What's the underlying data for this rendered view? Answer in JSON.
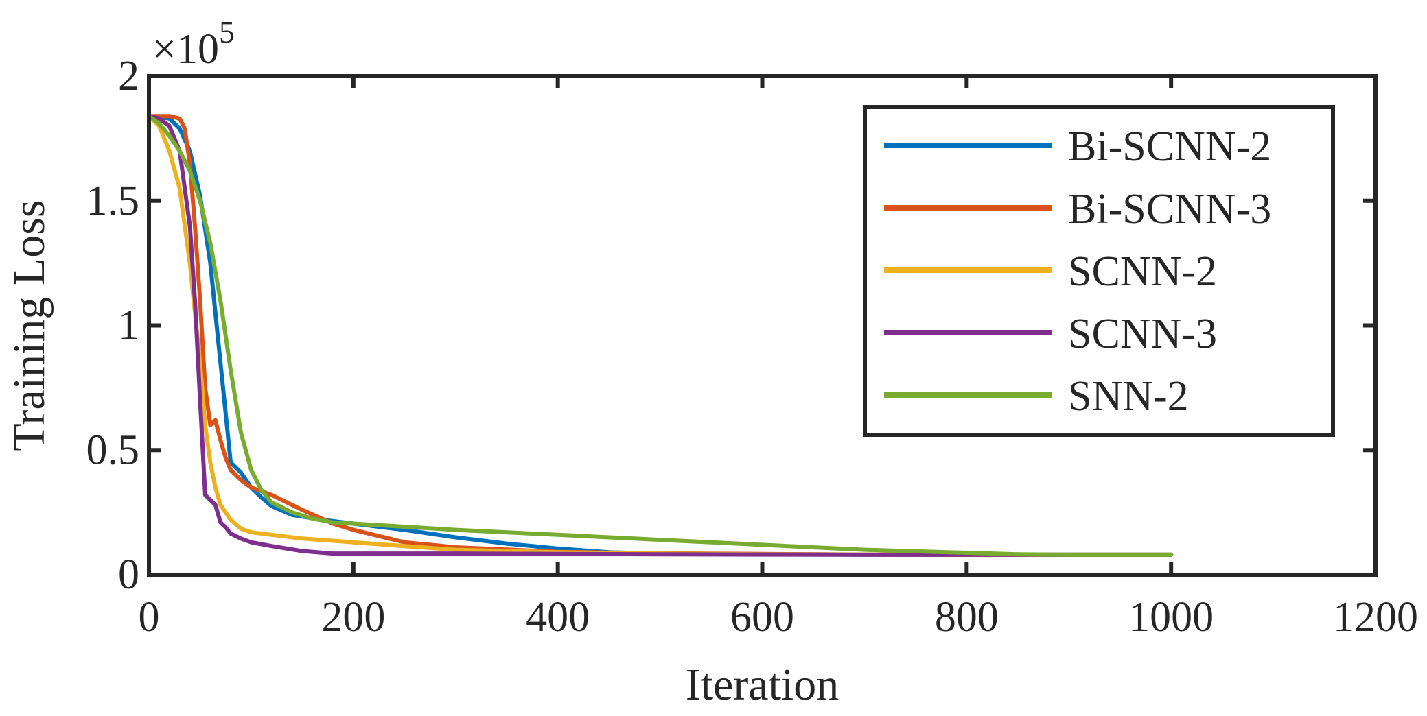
{
  "chart_data": {
    "type": "line",
    "xlabel": "Iteration",
    "ylabel": "Training Loss",
    "y_exponent_base": "×10",
    "y_exponent_power": "5",
    "xlim": [
      0,
      1200
    ],
    "ylim": [
      0,
      2
    ],
    "xticks": [
      0,
      200,
      400,
      600,
      800,
      1000,
      1200
    ],
    "xtick_labels": [
      "0",
      "200",
      "400",
      "600",
      "800",
      "1000",
      "1200"
    ],
    "yticks": [
      0,
      0.5,
      1,
      1.5,
      2
    ],
    "ytick_labels": [
      "0",
      "0.5",
      "1",
      "1.5",
      "2"
    ],
    "grid": false,
    "legend_position": "top-right",
    "series": [
      {
        "name": "Bi-SCNN-2",
        "color": "#0072BD",
        "x": [
          0,
          20,
          30,
          40,
          50,
          60,
          70,
          80,
          90,
          100,
          110,
          120,
          140,
          170,
          200,
          250,
          300,
          350,
          400,
          450,
          500,
          600,
          700,
          800,
          900,
          1000
        ],
        "y": [
          1.84,
          1.83,
          1.79,
          1.7,
          1.52,
          1.25,
          0.85,
          0.45,
          0.41,
          0.35,
          0.31,
          0.275,
          0.24,
          0.22,
          0.205,
          0.18,
          0.15,
          0.125,
          0.105,
          0.09,
          0.085,
          0.082,
          0.081,
          0.08,
          0.08,
          0.08
        ]
      },
      {
        "name": "Bi-SCNN-3",
        "color": "#D95319",
        "x": [
          0,
          20,
          30,
          35,
          40,
          45,
          50,
          55,
          60,
          65,
          70,
          75,
          80,
          90,
          100,
          120,
          150,
          180,
          200,
          250,
          300,
          400,
          500,
          600,
          700,
          800,
          900,
          1000
        ],
        "y": [
          1.84,
          1.84,
          1.83,
          1.79,
          1.65,
          1.4,
          1.1,
          0.75,
          0.6,
          0.62,
          0.54,
          0.47,
          0.42,
          0.38,
          0.35,
          0.32,
          0.26,
          0.205,
          0.18,
          0.13,
          0.11,
          0.092,
          0.086,
          0.083,
          0.081,
          0.08,
          0.08,
          0.08
        ]
      },
      {
        "name": "SCNN-2",
        "color": "#EDB120",
        "x": [
          0,
          10,
          20,
          30,
          40,
          50,
          55,
          60,
          65,
          70,
          80,
          90,
          100,
          120,
          150,
          200,
          250,
          300,
          400,
          500,
          600,
          700,
          800,
          900,
          1000
        ],
        "y": [
          1.84,
          1.8,
          1.7,
          1.55,
          1.25,
          0.85,
          0.6,
          0.45,
          0.35,
          0.28,
          0.22,
          0.185,
          0.17,
          0.16,
          0.145,
          0.13,
          0.115,
          0.1,
          0.09,
          0.085,
          0.082,
          0.081,
          0.08,
          0.08,
          0.08
        ]
      },
      {
        "name": "SCNN-3",
        "color": "#7E2F8E",
        "x": [
          0,
          10,
          20,
          30,
          40,
          45,
          50,
          55,
          60,
          65,
          70,
          75,
          80,
          90,
          100,
          120,
          150,
          180,
          200,
          300,
          400,
          500,
          600,
          700,
          800,
          900,
          1000
        ],
        "y": [
          1.84,
          1.83,
          1.8,
          1.7,
          1.4,
          1.1,
          0.7,
          0.32,
          0.3,
          0.28,
          0.21,
          0.19,
          0.165,
          0.145,
          0.13,
          0.115,
          0.095,
          0.085,
          0.085,
          0.085,
          0.083,
          0.082,
          0.081,
          0.08,
          0.08,
          0.08,
          0.08
        ]
      },
      {
        "name": "SNN-2",
        "color": "#77AC30",
        "x": [
          0,
          10,
          20,
          30,
          40,
          50,
          60,
          70,
          80,
          90,
          100,
          110,
          120,
          140,
          160,
          180,
          200,
          300,
          400,
          500,
          600,
          700,
          800,
          850,
          900,
          1000
        ],
        "y": [
          1.84,
          1.81,
          1.76,
          1.7,
          1.62,
          1.5,
          1.33,
          1.1,
          0.82,
          0.57,
          0.42,
          0.34,
          0.29,
          0.25,
          0.225,
          0.21,
          0.205,
          0.18,
          0.16,
          0.14,
          0.12,
          0.1,
          0.088,
          0.082,
          0.08,
          0.08
        ]
      }
    ]
  }
}
